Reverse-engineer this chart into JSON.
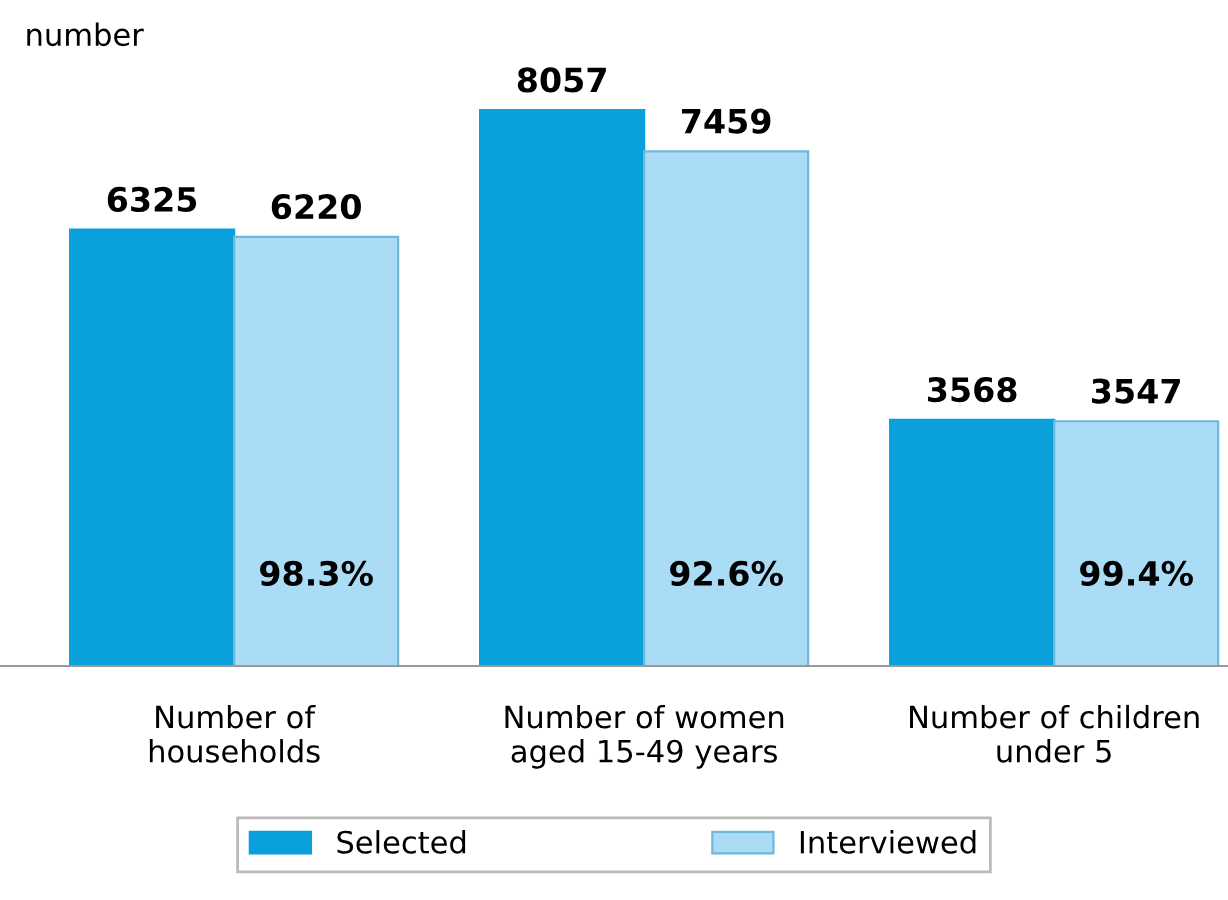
{
  "chart_data": {
    "type": "bar",
    "ylabel": "number",
    "categories": [
      "Number of\nhouseholds",
      "Number of women\naged 15-49 years",
      "Number of children\nunder 5"
    ],
    "series": [
      {
        "name": "Selected",
        "color": "#0aa0dc",
        "values": [
          6325,
          8057,
          3568
        ]
      },
      {
        "name": "Interviewed",
        "color": "#aadcf5",
        "values": [
          6220,
          7459,
          3547
        ]
      }
    ],
    "data_labels": true,
    "legend": "bottom",
    "grid": false,
    "annotations": [
      {
        "text": "98.3%",
        "x": "Number of\nhouseholds",
        "y": 1300
      },
      {
        "text": "92.6%",
        "x": "Number of women\naged 15-49 years",
        "y": 1300
      },
      {
        "text": "99.4%",
        "x": "Number of children\nunder 5",
        "y": 1300
      }
    ]
  }
}
